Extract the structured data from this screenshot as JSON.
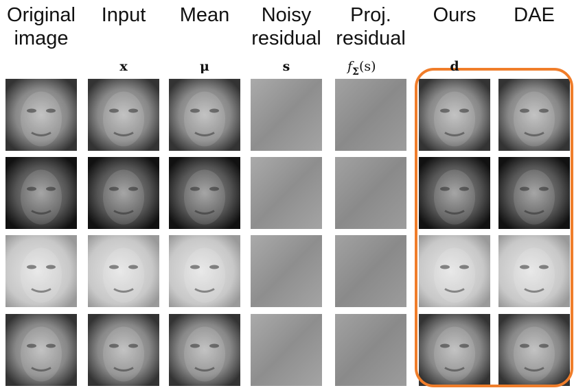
{
  "columns": [
    {
      "title": [
        "Original",
        "image"
      ]
    },
    {
      "title": [
        "Input"
      ],
      "symbol": "x"
    },
    {
      "title": [
        "Mean"
      ],
      "symbol": "μ"
    },
    {
      "title": [
        "Noisy",
        "residual"
      ],
      "symbol": "s"
    },
    {
      "title": [
        "Proj.",
        "residual"
      ],
      "symbol": "f",
      "subscript": "Σ",
      "suffix": "(s)"
    },
    {
      "title": [
        "Ours"
      ],
      "symbol": "d"
    },
    {
      "title": [
        "DAE"
      ]
    }
  ]
}
